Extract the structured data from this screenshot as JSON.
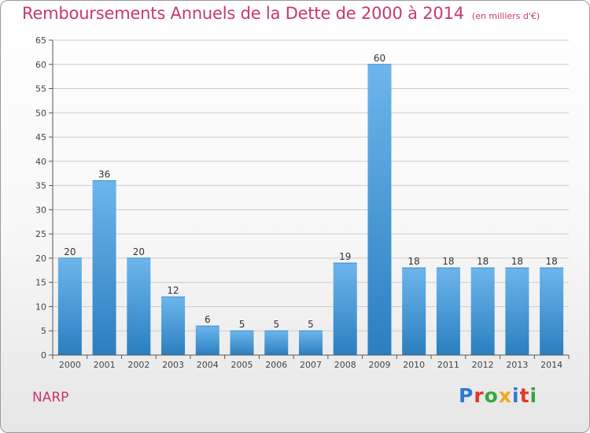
{
  "header": {
    "title": "Remboursements Annuels de la Dette de 2000 à 2014",
    "unit": "(en milliers d'€)"
  },
  "footer": {
    "town": "NARP",
    "logo_letters": [
      {
        "char": "P",
        "color": "#2b7bd6"
      },
      {
        "char": "r",
        "color": "#e2352b"
      },
      {
        "char": "o",
        "color": "#3aa53a"
      },
      {
        "char": "x",
        "color": "#f2a51a"
      },
      {
        "char": "i",
        "color": "#2b7bd6"
      },
      {
        "char": "t",
        "color": "#e2352b"
      },
      {
        "char": "i",
        "color": "#3aa53a"
      }
    ]
  },
  "colors": {
    "title": "#c8386e",
    "bar_top": "#6db5ec",
    "bar_bottom": "#2a7fc0",
    "grid": "#cccccc",
    "axis": "#555555"
  },
  "chart_data": {
    "type": "bar",
    "title": "Remboursements Annuels de la Dette de 2000 à 2014",
    "xlabel": "",
    "ylabel": "",
    "categories": [
      "2000",
      "2001",
      "2002",
      "2003",
      "2004",
      "2005",
      "2006",
      "2007",
      "2008",
      "2009",
      "2010",
      "2011",
      "2012",
      "2013",
      "2014"
    ],
    "values": [
      20,
      36,
      20,
      12,
      6,
      5,
      5,
      5,
      19,
      60,
      18,
      18,
      18,
      18,
      18
    ],
    "ylim": [
      0,
      65
    ],
    "yticks": [
      0,
      5,
      10,
      15,
      20,
      25,
      30,
      35,
      40,
      45,
      50,
      55,
      60,
      65
    ],
    "grid": true,
    "data_labels": true
  }
}
